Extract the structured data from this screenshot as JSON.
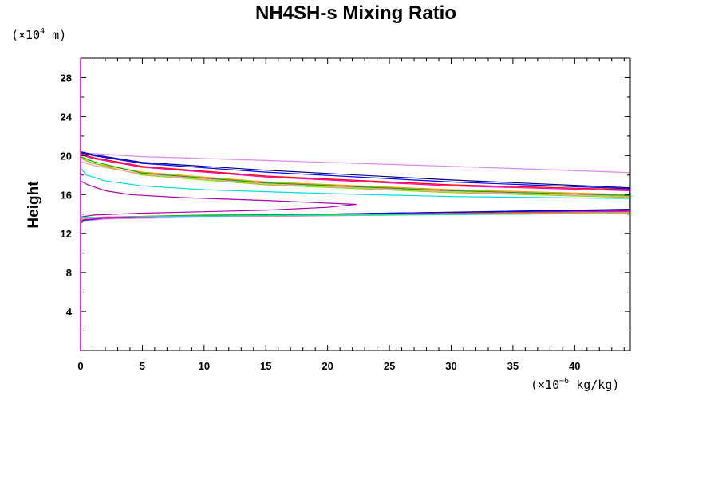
{
  "chart_data": {
    "type": "line",
    "title": "NH4SH-s Mixing Ratio",
    "ylabel": "Height",
    "xunit": {
      "prefix": "(×10",
      "exponent": "−6",
      "suffix": " kg/kg)"
    },
    "yunit": {
      "prefix": "(×10",
      "exponent": "4",
      "suffix": " m)"
    },
    "xlim": [
      0,
      44.5
    ],
    "ylim": [
      0,
      30
    ],
    "xticks": [
      0,
      5,
      10,
      15,
      20,
      25,
      30,
      35,
      40
    ],
    "yticks": [
      4,
      8,
      12,
      16,
      20,
      24,
      28
    ],
    "frame_color": "#cc00cc",
    "series": [
      {
        "name": "violet",
        "color": "#dd88ee",
        "values": [
          [
            0,
            13.0
          ],
          [
            0.3,
            13.3
          ],
          [
            2,
            13.5
          ],
          [
            10,
            13.7
          ],
          [
            25,
            13.9
          ],
          [
            44.5,
            14.1
          ],
          [
            44.5,
            18.25
          ],
          [
            30,
            18.9
          ],
          [
            15,
            19.5
          ],
          [
            5,
            19.9
          ],
          [
            1,
            20.2
          ],
          [
            0,
            20.3
          ]
        ]
      },
      {
        "name": "navy",
        "color": "#000080",
        "values": [
          [
            0,
            13.1
          ],
          [
            0.3,
            13.4
          ],
          [
            2,
            13.6
          ],
          [
            10,
            13.8
          ],
          [
            25,
            14.1
          ],
          [
            44.5,
            14.5
          ],
          [
            44.5,
            16.7
          ],
          [
            30,
            17.5
          ],
          [
            15,
            18.5
          ],
          [
            5,
            19.3
          ],
          [
            1,
            20.1
          ],
          [
            0,
            20.4
          ]
        ]
      },
      {
        "name": "blue",
        "color": "#0000ff",
        "values": [
          [
            0,
            13.1
          ],
          [
            0.3,
            13.4
          ],
          [
            2,
            13.6
          ],
          [
            10,
            13.8
          ],
          [
            25,
            14.1
          ],
          [
            44.5,
            14.4
          ],
          [
            44.5,
            16.6
          ],
          [
            30,
            17.3
          ],
          [
            15,
            18.3
          ],
          [
            5,
            19.2
          ],
          [
            1,
            20.0
          ],
          [
            0,
            20.3
          ]
        ]
      },
      {
        "name": "red",
        "color": "#ff0000",
        "values": [
          [
            0,
            13.2
          ],
          [
            0.3,
            13.5
          ],
          [
            2,
            13.6
          ],
          [
            10,
            13.8
          ],
          [
            25,
            14.0
          ],
          [
            44.5,
            14.3
          ],
          [
            44.5,
            16.5
          ],
          [
            30,
            17.0
          ],
          [
            15,
            17.9
          ],
          [
            5,
            18.9
          ],
          [
            1,
            19.8
          ],
          [
            0,
            20.2
          ]
        ]
      },
      {
        "name": "magenta",
        "color": "#ff00aa",
        "values": [
          [
            0,
            13.2
          ],
          [
            0.3,
            13.5
          ],
          [
            2,
            13.6
          ],
          [
            10,
            13.8
          ],
          [
            25,
            14.0
          ],
          [
            44.5,
            14.3
          ],
          [
            44.5,
            16.4
          ],
          [
            30,
            16.9
          ],
          [
            15,
            17.8
          ],
          [
            5,
            18.8
          ],
          [
            1,
            19.7
          ],
          [
            0,
            20.1
          ]
        ]
      },
      {
        "name": "orange",
        "color": "#ff9900",
        "values": [
          [
            0,
            13.3
          ],
          [
            0.3,
            13.6
          ],
          [
            2,
            13.7
          ],
          [
            10,
            13.8
          ],
          [
            25,
            14.0
          ],
          [
            44.5,
            14.2
          ],
          [
            44.5,
            16.0
          ],
          [
            30,
            16.5
          ],
          [
            15,
            17.3
          ],
          [
            5,
            18.3
          ],
          [
            1,
            19.2
          ],
          [
            0,
            19.7
          ]
        ]
      },
      {
        "name": "green",
        "color": "#00aa00",
        "values": [
          [
            0,
            13.3
          ],
          [
            0.3,
            13.6
          ],
          [
            2,
            13.7
          ],
          [
            10,
            13.9
          ],
          [
            25,
            14.0
          ],
          [
            44.5,
            14.1
          ],
          [
            44.5,
            15.9
          ],
          [
            30,
            16.4
          ],
          [
            15,
            17.2
          ],
          [
            5,
            18.2
          ],
          [
            1,
            19.4
          ],
          [
            0,
            19.9
          ]
        ]
      },
      {
        "name": "yellow-green",
        "color": "#88dd00",
        "values": [
          [
            0,
            13.4
          ],
          [
            0.3,
            13.6
          ],
          [
            2,
            13.7
          ],
          [
            10,
            13.8
          ],
          [
            25,
            13.9
          ],
          [
            44.5,
            14.1
          ],
          [
            44.5,
            15.7
          ],
          [
            30,
            16.2
          ],
          [
            15,
            17.0
          ],
          [
            5,
            18.0
          ],
          [
            1,
            19.2
          ],
          [
            0,
            19.8
          ]
        ]
      },
      {
        "name": "pink",
        "color": "#ff99aa",
        "values": [
          [
            0,
            13.5
          ],
          [
            2,
            13.7
          ],
          [
            10,
            13.8
          ],
          [
            25,
            13.95
          ],
          [
            44.5,
            14.1
          ],
          [
            44.5,
            15.8
          ],
          [
            30,
            16.3
          ],
          [
            15,
            17.1
          ],
          [
            5,
            18.1
          ],
          [
            1,
            19.0
          ],
          [
            0,
            19.4
          ]
        ]
      },
      {
        "name": "cyan",
        "color": "#00dddd",
        "values": [
          [
            0,
            13.6
          ],
          [
            2,
            13.7
          ],
          [
            10,
            13.8
          ],
          [
            25,
            13.95
          ],
          [
            44.5,
            14.05
          ],
          [
            44.5,
            15.6
          ],
          [
            30,
            15.8
          ],
          [
            20,
            16.1
          ],
          [
            10,
            16.5
          ],
          [
            5,
            16.9
          ],
          [
            2,
            17.4
          ],
          [
            0.5,
            18.0
          ],
          [
            0,
            18.7
          ]
        ]
      },
      {
        "name": "purple",
        "color": "#aa00aa",
        "values": [
          [
            0,
            13.7
          ],
          [
            1,
            13.9
          ],
          [
            5,
            14.1
          ],
          [
            15,
            14.4
          ],
          [
            20,
            14.7
          ],
          [
            22.3,
            15.0
          ],
          [
            15,
            15.4
          ],
          [
            8,
            15.7
          ],
          [
            4,
            16.0
          ],
          [
            2,
            16.4
          ],
          [
            0.6,
            17.0
          ],
          [
            0,
            17.4
          ]
        ]
      }
    ]
  }
}
